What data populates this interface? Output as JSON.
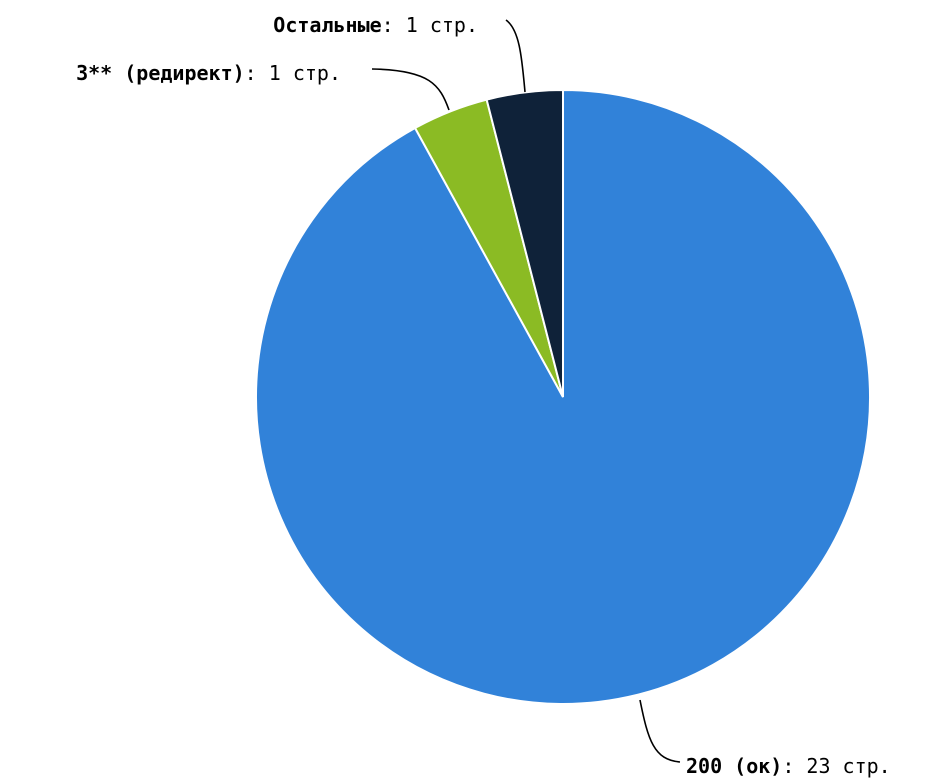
{
  "chart_data": {
    "type": "pie",
    "title": "",
    "unit": "стр.",
    "slices": [
      {
        "label": "200 (ок)",
        "value": 23,
        "display": "23 стр.",
        "color": "#3182d9"
      },
      {
        "label": "3** (редирект)",
        "value": 1,
        "display": "1 стр.",
        "color": "#0f2239"
      },
      {
        "label": "Остальные",
        "value": 1,
        "display": "1 стр.",
        "color": "#8bbb24"
      }
    ],
    "legend": "none",
    "label_separator": ": "
  }
}
